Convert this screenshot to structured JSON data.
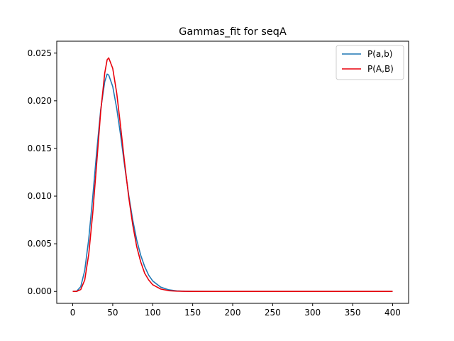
{
  "chart_data": {
    "type": "line",
    "title": "Gammas_fit for seqA",
    "xlabel": "",
    "ylabel": "",
    "xlim": [
      -20,
      420
    ],
    "ylim": [
      -0.00125,
      0.02625
    ],
    "x_ticks": [
      0,
      50,
      100,
      150,
      200,
      250,
      300,
      350,
      400
    ],
    "x_tick_labels": [
      "0",
      "50",
      "100",
      "150",
      "200",
      "250",
      "300",
      "350",
      "400"
    ],
    "y_ticks": [
      0.0,
      0.005,
      0.01,
      0.015,
      0.02,
      0.025
    ],
    "y_tick_labels": [
      "0.000",
      "0.005",
      "0.010",
      "0.015",
      "0.020",
      "0.025"
    ],
    "grid": false,
    "legend_position": "top-right",
    "series": [
      {
        "name": "P(a,b)",
        "color": "#1f77b4",
        "points": [
          [
            0,
            0
          ],
          [
            5,
            3e-05
          ],
          [
            10,
            0.0005
          ],
          [
            15,
            0.0022
          ],
          [
            20,
            0.0055
          ],
          [
            25,
            0.0099
          ],
          [
            30,
            0.0147
          ],
          [
            35,
            0.0191
          ],
          [
            40,
            0.022
          ],
          [
            43,
            0.0228
          ],
          [
            45,
            0.0227
          ],
          [
            50,
            0.0215
          ],
          [
            55,
            0.0192
          ],
          [
            60,
            0.0163
          ],
          [
            65,
            0.0131
          ],
          [
            70,
            0.0101
          ],
          [
            75,
            0.0075
          ],
          [
            80,
            0.0054
          ],
          [
            85,
            0.0038
          ],
          [
            90,
            0.0026
          ],
          [
            95,
            0.0017
          ],
          [
            100,
            0.0011
          ],
          [
            110,
            0.00045
          ],
          [
            120,
            0.00017
          ],
          [
            130,
            6e-05
          ],
          [
            140,
            2e-05
          ],
          [
            150,
            1e-05
          ],
          [
            175,
            0
          ],
          [
            200,
            0
          ],
          [
            250,
            0
          ],
          [
            300,
            0
          ],
          [
            350,
            0
          ],
          [
            400,
            0
          ]
        ]
      },
      {
        "name": "P(A,B)",
        "color": "#e8000b",
        "points": [
          [
            0,
            0
          ],
          [
            5,
            5e-06
          ],
          [
            10,
            0.0002
          ],
          [
            15,
            0.0012
          ],
          [
            20,
            0.0039
          ],
          [
            25,
            0.0082
          ],
          [
            30,
            0.0135
          ],
          [
            35,
            0.0189
          ],
          [
            40,
            0.0229
          ],
          [
            43,
            0.0243
          ],
          [
            45,
            0.0245
          ],
          [
            50,
            0.0234
          ],
          [
            55,
            0.0208
          ],
          [
            60,
            0.0172
          ],
          [
            65,
            0.0134
          ],
          [
            70,
            0.0099
          ],
          [
            75,
            0.007
          ],
          [
            80,
            0.0047
          ],
          [
            85,
            0.0031
          ],
          [
            90,
            0.0019
          ],
          [
            95,
            0.0012
          ],
          [
            100,
            0.0007
          ],
          [
            110,
            0.00025
          ],
          [
            120,
            8e-05
          ],
          [
            130,
            3e-05
          ],
          [
            140,
            1e-05
          ],
          [
            150,
            0
          ],
          [
            175,
            0
          ],
          [
            200,
            0
          ],
          [
            250,
            0
          ],
          [
            300,
            0
          ],
          [
            350,
            0
          ],
          [
            400,
            0
          ]
        ]
      }
    ]
  }
}
